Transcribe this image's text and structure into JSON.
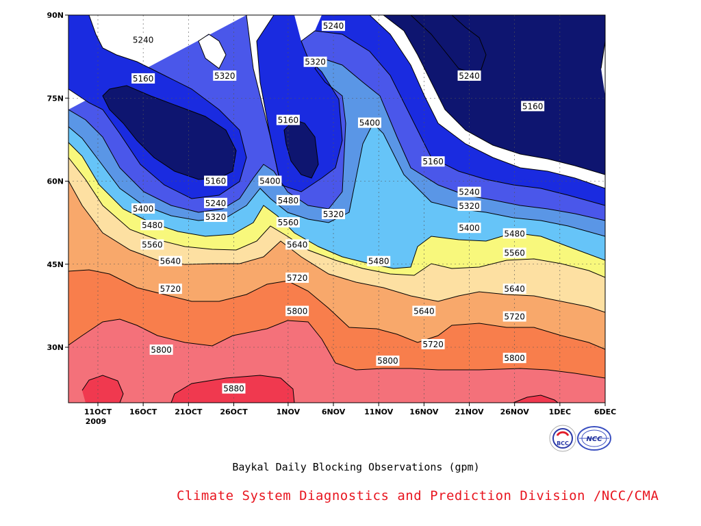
{
  "chart_data": {
    "type": "contour",
    "x_ticks": [
      "11OCT",
      "16OCT",
      "21OCT",
      "26OCT",
      "1NOV",
      "6NOV",
      "11NOV",
      "16NOV",
      "21NOV",
      "26NOV",
      "1DEC",
      "6DEC"
    ],
    "x_year_label": "2009",
    "y_ticks": [
      "30N",
      "45N",
      "60N",
      "75N",
      "90N"
    ],
    "levels": [
      5160,
      5240,
      5320,
      5400,
      5480,
      5560,
      5640,
      5720,
      5800,
      5880
    ],
    "level_colors": {
      "below_5160": "#0e1570",
      "5160_5240": "#1a2be0",
      "5240_5320": "#4a57ea",
      "5320_5400": "#5a96e6",
      "5400_5480": "#66c4f8",
      "5480_5560": "#f8f87c",
      "5560_5640": "#fde0a2",
      "5640_5720": "#f8a86b",
      "5720_5800": "#f87e4c",
      "5800_5880": "#f4717a",
      "above_5880": "#f0394f"
    },
    "contour_labels": [
      {
        "text": "5240",
        "date": "16OCT",
        "lat": 85.5
      },
      {
        "text": "5160",
        "date": "16OCT",
        "lat": 78.5
      },
      {
        "text": "5320",
        "date": "25OCT",
        "lat": 79
      },
      {
        "text": "5240",
        "date": "6NOV",
        "lat": 88
      },
      {
        "text": "5320",
        "date": "4NOV",
        "lat": 81.5
      },
      {
        "text": "5240",
        "date": "21NOV",
        "lat": 79
      },
      {
        "text": "5160",
        "date": "1NOV",
        "lat": 71
      },
      {
        "text": "5400",
        "date": "10NOV",
        "lat": 70.5
      },
      {
        "text": "5160",
        "date": "28NOV",
        "lat": 73.5
      },
      {
        "text": "5160",
        "date": "17NOV",
        "lat": 63.5
      },
      {
        "text": "5160",
        "date": "24OCT",
        "lat": 60
      },
      {
        "text": "5400",
        "date": "30OCT",
        "lat": 60
      },
      {
        "text": "5240",
        "date": "21NOV",
        "lat": 58
      },
      {
        "text": "5240",
        "date": "24OCT",
        "lat": 56
      },
      {
        "text": "5480",
        "date": "1NOV",
        "lat": 56.5
      },
      {
        "text": "5400",
        "date": "16OCT",
        "lat": 55
      },
      {
        "text": "5320",
        "date": "21NOV",
        "lat": 55.5
      },
      {
        "text": "5320",
        "date": "24OCT",
        "lat": 53.5
      },
      {
        "text": "5320",
        "date": "6NOV",
        "lat": 54
      },
      {
        "text": "5560",
        "date": "1NOV",
        "lat": 52.5
      },
      {
        "text": "5480",
        "date": "17OCT",
        "lat": 52
      },
      {
        "text": "5400",
        "date": "21NOV",
        "lat": 51.5
      },
      {
        "text": "5480",
        "date": "26NOV",
        "lat": 50.5
      },
      {
        "text": "5640",
        "date": "2NOV",
        "lat": 48.5
      },
      {
        "text": "5560",
        "date": "17OCT",
        "lat": 48.5
      },
      {
        "text": "5560",
        "date": "26NOV",
        "lat": 47
      },
      {
        "text": "5480",
        "date": "11NOV",
        "lat": 45.5
      },
      {
        "text": "5640",
        "date": "19OCT",
        "lat": 45.5
      },
      {
        "text": "5720",
        "date": "2NOV",
        "lat": 42.5
      },
      {
        "text": "5720",
        "date": "19OCT",
        "lat": 40.5
      },
      {
        "text": "5640",
        "date": "26NOV",
        "lat": 40.5
      },
      {
        "text": "5640",
        "date": "16NOV",
        "lat": 36.5
      },
      {
        "text": "5800",
        "date": "2NOV",
        "lat": 36.5
      },
      {
        "text": "5720",
        "date": "26NOV",
        "lat": 35.5
      },
      {
        "text": "5720",
        "date": "17NOV",
        "lat": 30.5
      },
      {
        "text": "5800",
        "date": "18OCT",
        "lat": 29.5
      },
      {
        "text": "5800",
        "date": "12NOV",
        "lat": 27.5
      },
      {
        "text": "5800",
        "date": "26NOV",
        "lat": 28
      },
      {
        "text": "5880",
        "date": "26OCT",
        "lat": 22.5
      }
    ]
  },
  "caption": "Baykal Daily Blocking Observations (gpm)",
  "credit": "Climate System Diagnostics and Prediction Division /NCC/CMA",
  "logos": {
    "bcc_text": "BCC",
    "ncc_text": "NCC"
  }
}
